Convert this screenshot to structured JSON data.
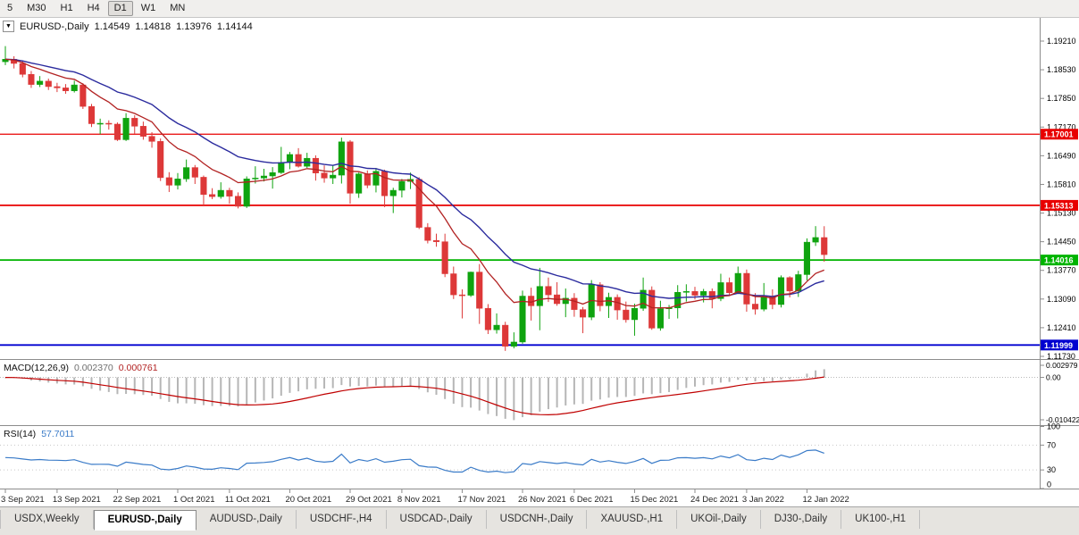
{
  "toolbar": {
    "items": [
      {
        "label": "5",
        "active": false
      },
      {
        "label": "M30",
        "active": false
      },
      {
        "label": "H1",
        "active": false
      },
      {
        "label": "H4",
        "active": false
      },
      {
        "label": "D1",
        "active": true
      },
      {
        "label": "W1",
        "active": false
      },
      {
        "label": "MN",
        "active": false
      }
    ]
  },
  "icons": {
    "chart_dropdown": "▼"
  },
  "chart_header": {
    "symbol_timeframe": "EURUSD-,Daily",
    "open": "1.14549",
    "high": "1.14818",
    "low": "1.13976",
    "close": "1.14144"
  },
  "chart_data": {
    "type": "candlestick",
    "symbol": "EURUSD-",
    "timeframe": "Daily",
    "ohlc_current": {
      "open": 1.14549,
      "high": 1.14818,
      "low": 1.13976,
      "close": 1.14144
    },
    "price_axis_labels": [
      "1.19210",
      "1.18530",
      "1.17850",
      "1.17170",
      "1.16490",
      "1.15810",
      "1.15130",
      "1.14450",
      "1.13770",
      "1.13090",
      "1.12410",
      "1.11730"
    ],
    "hlines": [
      {
        "label": "1.17001",
        "value": 1.17001,
        "color": "#e80000",
        "width": 1.2
      },
      {
        "label": "1.15313",
        "value": 1.15313,
        "color": "#e80000",
        "width": 1.7
      },
      {
        "label": "1.14016",
        "value": 1.14016,
        "color": "#00b400",
        "width": 1.8
      },
      {
        "label": "1.11999",
        "value": 1.11999,
        "color": "#0000d0",
        "width": 1.8
      }
    ],
    "x_tick_labels": [
      {
        "label": "3 Sep 2021",
        "bar": 0
      },
      {
        "label": "13 Sep 2021",
        "bar": 6
      },
      {
        "label": "22 Sep 2021",
        "bar": 13
      },
      {
        "label": "1 Oct 2021",
        "bar": 20
      },
      {
        "label": "11 Oct 2021",
        "bar": 26
      },
      {
        "label": "20 Oct 2021",
        "bar": 33
      },
      {
        "label": "29 Oct 2021",
        "bar": 40
      },
      {
        "label": "8 Nov 2021",
        "bar": 46
      },
      {
        "label": "17 Nov 2021",
        "bar": 53
      },
      {
        "label": "26 Nov 2021",
        "bar": 60
      },
      {
        "label": "6 Dec 2021",
        "bar": 66
      },
      {
        "label": "15 Dec 2021",
        "bar": 73
      },
      {
        "label": "24 Dec 2021",
        "bar": 80
      },
      {
        "label": "3 Jan 2022",
        "bar": 86
      },
      {
        "label": "12 Jan 2022",
        "bar": 93
      }
    ],
    "candles": [
      [
        1.1872,
        1.1909,
        1.1864,
        1.1878
      ],
      [
        1.1878,
        1.1885,
        1.1856,
        1.1868
      ],
      [
        1.1868,
        1.1874,
        1.1835,
        1.1842
      ],
      [
        1.1842,
        1.185,
        1.181,
        1.1818
      ],
      [
        1.1818,
        1.1838,
        1.1812,
        1.1826
      ],
      [
        1.1826,
        1.1832,
        1.1805,
        1.1813
      ],
      [
        1.1813,
        1.1822,
        1.18,
        1.181
      ],
      [
        1.181,
        1.1819,
        1.1796,
        1.1803
      ],
      [
        1.1803,
        1.1827,
        1.1799,
        1.1817
      ],
      [
        1.1817,
        1.1821,
        1.176,
        1.1766
      ],
      [
        1.1766,
        1.1772,
        1.1717,
        1.1725
      ],
      [
        1.1725,
        1.1737,
        1.17,
        1.1726
      ],
      [
        1.1726,
        1.1733,
        1.1711,
        1.1724
      ],
      [
        1.1724,
        1.1728,
        1.1684,
        1.1687
      ],
      [
        1.1687,
        1.175,
        1.1684,
        1.1738
      ],
      [
        1.1738,
        1.1745,
        1.1701,
        1.1719
      ],
      [
        1.1719,
        1.173,
        1.1687,
        1.1695
      ],
      [
        1.1695,
        1.1705,
        1.1668,
        1.1683
      ],
      [
        1.1683,
        1.169,
        1.1589,
        1.1597
      ],
      [
        1.1597,
        1.161,
        1.1563,
        1.1579
      ],
      [
        1.1579,
        1.1608,
        1.1569,
        1.1594
      ],
      [
        1.1594,
        1.164,
        1.1587,
        1.1621
      ],
      [
        1.1621,
        1.1627,
        1.1582,
        1.1598
      ],
      [
        1.1598,
        1.1602,
        1.1529,
        1.1557
      ],
      [
        1.1557,
        1.1572,
        1.1546,
        1.1552
      ],
      [
        1.1552,
        1.1586,
        1.1547,
        1.1567
      ],
      [
        1.1567,
        1.1573,
        1.1535,
        1.1553
      ],
      [
        1.1553,
        1.1562,
        1.1524,
        1.1529
      ],
      [
        1.1529,
        1.16,
        1.1525,
        1.1594
      ],
      [
        1.1594,
        1.1624,
        1.1583,
        1.1596
      ],
      [
        1.1596,
        1.1618,
        1.1588,
        1.1601
      ],
      [
        1.1601,
        1.1622,
        1.1571,
        1.1609
      ],
      [
        1.1609,
        1.167,
        1.1606,
        1.1633
      ],
      [
        1.1633,
        1.1658,
        1.1617,
        1.1652
      ],
      [
        1.1652,
        1.1667,
        1.1621,
        1.1624
      ],
      [
        1.1624,
        1.1656,
        1.162,
        1.1643
      ],
      [
        1.1643,
        1.165,
        1.159,
        1.1608
      ],
      [
        1.1608,
        1.1626,
        1.1585,
        1.1596
      ],
      [
        1.1596,
        1.1626,
        1.1582,
        1.1603
      ],
      [
        1.1603,
        1.1692,
        1.1583,
        1.1682
      ],
      [
        1.1682,
        1.1686,
        1.1535,
        1.156
      ],
      [
        1.156,
        1.1609,
        1.1549,
        1.1606
      ],
      [
        1.1606,
        1.1614,
        1.1572,
        1.1579
      ],
      [
        1.1579,
        1.162,
        1.1562,
        1.1612
      ],
      [
        1.1612,
        1.1616,
        1.1527,
        1.1554
      ],
      [
        1.1554,
        1.1573,
        1.1513,
        1.1567
      ],
      [
        1.1567,
        1.1594,
        1.155,
        1.1588
      ],
      [
        1.1588,
        1.1609,
        1.157,
        1.1593
      ],
      [
        1.1593,
        1.1598,
        1.1475,
        1.1479
      ],
      [
        1.1479,
        1.1489,
        1.1441,
        1.1448
      ],
      [
        1.1448,
        1.1464,
        1.1433,
        1.1445
      ],
      [
        1.1445,
        1.1464,
        1.1361,
        1.1369
      ],
      [
        1.1369,
        1.1386,
        1.1309,
        1.1319
      ],
      [
        1.1319,
        1.1332,
        1.1263,
        1.1318
      ],
      [
        1.1318,
        1.1374,
        1.1314,
        1.1373
      ],
      [
        1.1373,
        1.1392,
        1.125,
        1.1287
      ],
      [
        1.1287,
        1.1297,
        1.1226,
        1.1236
      ],
      [
        1.1236,
        1.1275,
        1.1227,
        1.1247
      ],
      [
        1.1247,
        1.1255,
        1.1186,
        1.1197
      ],
      [
        1.1197,
        1.123,
        1.1192,
        1.1207
      ],
      [
        1.1207,
        1.1329,
        1.1203,
        1.1316
      ],
      [
        1.1316,
        1.1336,
        1.1258,
        1.1293
      ],
      [
        1.1293,
        1.1383,
        1.1235,
        1.1339
      ],
      [
        1.1339,
        1.136,
        1.1302,
        1.1319
      ],
      [
        1.1319,
        1.1349,
        1.1293,
        1.1298
      ],
      [
        1.1298,
        1.1334,
        1.1266,
        1.1311
      ],
      [
        1.1311,
        1.1323,
        1.1267,
        1.1284
      ],
      [
        1.1284,
        1.129,
        1.1228,
        1.1266
      ],
      [
        1.1266,
        1.1354,
        1.1259,
        1.1343
      ],
      [
        1.1343,
        1.1349,
        1.128,
        1.1293
      ],
      [
        1.1293,
        1.1324,
        1.1264,
        1.1313
      ],
      [
        1.1313,
        1.132,
        1.126,
        1.1283
      ],
      [
        1.1283,
        1.1303,
        1.1253,
        1.126
      ],
      [
        1.126,
        1.1298,
        1.1222,
        1.1287
      ],
      [
        1.1287,
        1.136,
        1.1281,
        1.133
      ],
      [
        1.133,
        1.1339,
        1.1236,
        1.124
      ],
      [
        1.124,
        1.1305,
        1.1234,
        1.1286
      ],
      [
        1.1286,
        1.1295,
        1.1262,
        1.1288
      ],
      [
        1.1288,
        1.1342,
        1.1263,
        1.1325
      ],
      [
        1.1325,
        1.1344,
        1.1303,
        1.1327
      ],
      [
        1.1327,
        1.1338,
        1.1308,
        1.1318
      ],
      [
        1.1318,
        1.1333,
        1.1301,
        1.1327
      ],
      [
        1.1327,
        1.1334,
        1.1287,
        1.131
      ],
      [
        1.131,
        1.1369,
        1.1304,
        1.1348
      ],
      [
        1.1348,
        1.136,
        1.1316,
        1.1324
      ],
      [
        1.1324,
        1.1386,
        1.1321,
        1.137
      ],
      [
        1.137,
        1.1379,
        1.1279,
        1.1297
      ],
      [
        1.1297,
        1.1323,
        1.1272,
        1.1285
      ],
      [
        1.1285,
        1.1347,
        1.128,
        1.1314
      ],
      [
        1.1314,
        1.1332,
        1.1285,
        1.1296
      ],
      [
        1.1296,
        1.1365,
        1.1289,
        1.136
      ],
      [
        1.136,
        1.1363,
        1.1313,
        1.1328
      ],
      [
        1.1328,
        1.1376,
        1.1314,
        1.1367
      ],
      [
        1.1367,
        1.1453,
        1.1353,
        1.1444
      ],
      [
        1.1444,
        1.1482,
        1.1435,
        1.1455
      ],
      [
        1.14549,
        1.14818,
        1.13976,
        1.14144
      ]
    ],
    "indicators": {
      "macd": {
        "label": "MACD(12,26,9)",
        "value": "0.002370",
        "signal_value": "0.000761",
        "scale_max_label": "0.002979",
        "scale_zero_label": "0.00",
        "scale_min_label": "-0.010422"
      },
      "rsi": {
        "label": "RSI(14)",
        "value": "57.7011",
        "axis_labels": [
          "100",
          "70",
          "30",
          "0"
        ]
      }
    },
    "colors": {
      "bull": "#0fa30f",
      "bear": "#dd3838",
      "ma_fast": "#b22222",
      "ma_slow": "#2b2b9e",
      "macd_hist": "#b6b6b6",
      "macd_signal": "#c00000",
      "rsi_line": "#3a7bc8",
      "axis_text": "#000000",
      "separator": "#8c8c8c"
    }
  },
  "tabs": [
    {
      "label": "USDX,Weekly",
      "active": false
    },
    {
      "label": "EURUSD-,Daily",
      "active": true
    },
    {
      "label": "AUDUSD-,Daily",
      "active": false
    },
    {
      "label": "USDCHF-,H4",
      "active": false
    },
    {
      "label": "USDCAD-,Daily",
      "active": false
    },
    {
      "label": "USDCNH-,Daily",
      "active": false
    },
    {
      "label": "XAUUSD-,H1",
      "active": false
    },
    {
      "label": "UKOil-,Daily",
      "active": false
    },
    {
      "label": "DJ30-,Daily",
      "active": false
    },
    {
      "label": "UK100-,H1",
      "active": false
    }
  ]
}
